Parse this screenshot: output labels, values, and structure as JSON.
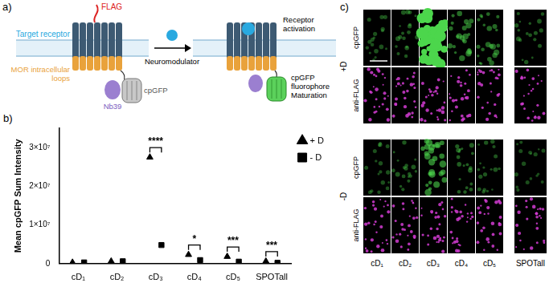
{
  "panel_labels": [
    "a)",
    "b)",
    "c)"
  ],
  "diagram": {
    "flag": "FLAG",
    "target_receptor": "Target receptor",
    "loops": [
      "MOR intracellular",
      "loops"
    ],
    "sensor": "cpGFP",
    "nanobody": "Nb39",
    "ligand": "Neuromodulator",
    "activation": [
      "Receptor",
      "activation"
    ],
    "maturation": [
      "cpGFP",
      "fluorophore",
      "Maturation"
    ]
  },
  "chart_data": {
    "type": "scatter",
    "y_label": "Mean cpGFP Sum Intensity",
    "categories": [
      "cD₁",
      "cD₂",
      "cD₃",
      "cD₄",
      "cD₅",
      "SPOTall"
    ],
    "series": [
      {
        "name": "+ D",
        "marker": "triangle",
        "color": "#000000",
        "values": [
          300000,
          600000,
          27500000,
          2300000,
          1800000,
          600000
        ]
      },
      {
        "name": "- D",
        "marker": "square",
        "color": "#000000",
        "values": [
          300000,
          600000,
          4800000,
          900000,
          500000,
          200000
        ]
      }
    ],
    "ylim": [
      0,
      35000000
    ],
    "yticks": [
      0,
      {
        "value": 10000000,
        "label": "1×10⁷"
      },
      {
        "value": 20000000,
        "label": "2×10⁷"
      },
      {
        "value": 30000000,
        "label": "3×10⁷"
      }
    ],
    "grid": false,
    "legend": "right",
    "annotations": [
      {
        "category": "cD₃",
        "label": "****"
      },
      {
        "category": "cD₄",
        "label": "*"
      },
      {
        "category": "cD₅",
        "label": "***"
      },
      {
        "category": "SPOTall",
        "label": "***"
      }
    ]
  },
  "micrographs": {
    "conditions": [
      "+D",
      "-D"
    ],
    "channels": [
      {
        "name": "cpGFP",
        "color": "#4cd64c"
      },
      {
        "name": "anti-FLAG",
        "color": "#d23cd2"
      }
    ]
  }
}
